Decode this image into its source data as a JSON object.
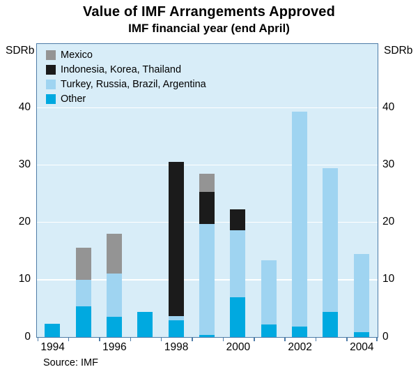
{
  "title": "Value of IMF Arrangements Approved",
  "subtitle": "IMF financial year (end April)",
  "y_axis_label_left": "SDRb",
  "y_axis_label_right": "SDRb",
  "source": "Source: IMF",
  "chart_data": {
    "type": "bar",
    "stacked": true,
    "title": "Value of IMF Arrangements Approved",
    "subtitle": "IMF financial year (end April)",
    "unit": "SDRb",
    "categories": [
      "1994",
      "1995",
      "1996",
      "1997",
      "1998",
      "1999",
      "2000",
      "2001",
      "2002",
      "2003",
      "2004"
    ],
    "x_tick_labels": [
      "1994",
      "1996",
      "1998",
      "2000",
      "2002",
      "2004"
    ],
    "x_tick_slots": [
      0,
      2,
      4,
      6,
      8,
      10
    ],
    "series": [
      {
        "name": "Other",
        "color": "#00a9e0",
        "values": [
          2.3,
          5.3,
          3.5,
          4.4,
          2.9,
          0.4,
          7.0,
          2.2,
          1.8,
          4.4,
          0.8
        ]
      },
      {
        "name": "Turkey, Russia, Brazil, Argentina",
        "color": "#9fd4f1",
        "values": [
          0,
          4.7,
          7.6,
          0,
          0.8,
          19.3,
          11.6,
          11.2,
          37.5,
          25.0,
          13.7
        ]
      },
      {
        "name": "Indonesia, Korea, Thailand",
        "color": "#1b1b1b",
        "values": [
          0,
          0,
          0,
          0,
          26.8,
          5.6,
          3.7,
          0,
          0,
          0,
          0
        ]
      },
      {
        "name": "Mexico",
        "color": "#949494",
        "values": [
          0,
          5.6,
          6.9,
          0,
          0,
          3.2,
          0,
          0,
          0,
          0,
          0
        ]
      }
    ],
    "legend": [
      {
        "label": "Mexico",
        "color": "#949494"
      },
      {
        "label": "Indonesia, Korea, Thailand",
        "color": "#1b1b1b"
      },
      {
        "label": "Turkey, Russia, Brazil, Argentina",
        "color": "#9fd4f1"
      },
      {
        "label": "Other",
        "color": "#00a9e0"
      }
    ],
    "yticks": [
      0,
      10,
      20,
      30,
      40
    ],
    "ylim": [
      0,
      51
    ],
    "grid": true,
    "legend_position": "top-left",
    "plot_bg": "#d8edf8",
    "frame_color": "#4d7ba7",
    "grid_color": "#ffffff"
  }
}
